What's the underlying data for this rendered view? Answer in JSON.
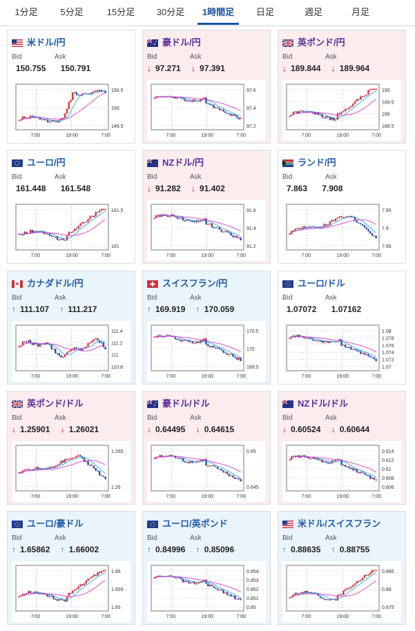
{
  "tabs": [
    {
      "label": "1分足",
      "active": false
    },
    {
      "label": "5分足",
      "active": false
    },
    {
      "label": "15分足",
      "active": false
    },
    {
      "label": "30分足",
      "active": false
    },
    {
      "label": "1時間足",
      "active": true
    },
    {
      "label": "日足",
      "active": false
    },
    {
      "label": "週足",
      "active": false
    },
    {
      "label": "月足",
      "active": false
    }
  ],
  "labels": {
    "bid": "Bid",
    "ask": "Ask"
  },
  "x_ticks": [
    "7:00",
    "19:00",
    "7:00"
  ],
  "cards": [
    {
      "name": "米ドル/円",
      "flag": "us",
      "state": "flat",
      "bid": "150.755",
      "ask": "150.791",
      "dir": "",
      "yticks": [
        "150.5",
        "150",
        "149.5"
      ],
      "shape": "updown"
    },
    {
      "name": "豪ドル/円",
      "flag": "au",
      "state": "down",
      "bid": "97.271",
      "ask": "97.391",
      "dir": "down",
      "yticks": [
        "97.6",
        "97.4",
        "97.2"
      ],
      "shape": "down"
    },
    {
      "name": "英ポンド/円",
      "flag": "gb",
      "state": "down",
      "bid": "189.844",
      "ask": "189.964",
      "dir": "down",
      "yticks": [
        "190",
        "189.5",
        "189",
        "188.5"
      ],
      "shape": "up"
    },
    {
      "name": "ユーロ/円",
      "flag": "eu",
      "state": "flat",
      "bid": "161.448",
      "ask": "161.548",
      "dir": "",
      "yticks": [
        "161.5",
        "161"
      ],
      "shape": "up"
    },
    {
      "name": "NZドル/円",
      "flag": "nz",
      "state": "down",
      "bid": "91.282",
      "ask": "91.402",
      "dir": "down",
      "yticks": [
        "91.6",
        "91.4",
        "91.2"
      ],
      "shape": "down"
    },
    {
      "name": "ランド/円",
      "flag": "za",
      "state": "flat",
      "bid": "7.863",
      "ask": "7.908",
      "dir": "",
      "yticks": [
        "7.95",
        "7.9",
        "7.85"
      ],
      "shape": "humpdown"
    },
    {
      "name": "カナダドル/円",
      "flag": "ca",
      "state": "up",
      "bid": "111.107",
      "ask": "111.217",
      "dir": "up",
      "yticks": [
        "111.4",
        "111.2",
        "111",
        "110.8"
      ],
      "shape": "mixed"
    },
    {
      "name": "スイスフラン/円",
      "flag": "ch",
      "state": "up",
      "bid": "169.919",
      "ask": "170.059",
      "dir": "up",
      "yticks": [
        "170.5",
        "170",
        "169.5"
      ],
      "shape": "down"
    },
    {
      "name": "ユーロ/ドル",
      "flag": "eu",
      "state": "flat",
      "bid": "1.07072",
      "ask": "1.07162",
      "dir": "",
      "yticks": [
        "1.08",
        "1.078",
        "1.076",
        "1.074",
        "1.072",
        "1.07"
      ],
      "shape": "down"
    },
    {
      "name": "英ポンド/ドル",
      "flag": "gb",
      "state": "down",
      "bid": "1.25901",
      "ask": "1.26021",
      "dir": "down",
      "yticks": [
        "1.265",
        "1.26"
      ],
      "shape": "humpdown"
    },
    {
      "name": "豪ドル/ドル",
      "flag": "au",
      "state": "down",
      "bid": "0.64495",
      "ask": "0.64615",
      "dir": "down",
      "yticks": [
        "0.65",
        "0.645"
      ],
      "shape": "down"
    },
    {
      "name": "NZドル/ドル",
      "flag": "nz",
      "state": "down",
      "bid": "0.60524",
      "ask": "0.60644",
      "dir": "down",
      "yticks": [
        "0.614",
        "0.612",
        "0.61",
        "0.608",
        "0.606"
      ],
      "shape": "down"
    },
    {
      "name": "ユーロ/豪ドル",
      "flag": "eu",
      "state": "up",
      "bid": "1.65862",
      "ask": "1.66002",
      "dir": "up",
      "yticks": [
        "1.66",
        "1.655",
        "1.65"
      ],
      "shape": "up"
    },
    {
      "name": "ユーロ/英ポンド",
      "flag": "eu",
      "state": "up",
      "bid": "0.84996",
      "ask": "0.85096",
      "dir": "up",
      "yticks": [
        "0.854",
        "0.853",
        "0.852",
        "0.851",
        "0.85"
      ],
      "shape": "down"
    },
    {
      "name": "米ドル/スイスフラン",
      "flag": "us",
      "state": "up",
      "bid": "0.88635",
      "ask": "0.88755",
      "dir": "up",
      "yticks": [
        "0.885",
        "0.88",
        "0.875"
      ],
      "shape": "up"
    }
  ]
}
